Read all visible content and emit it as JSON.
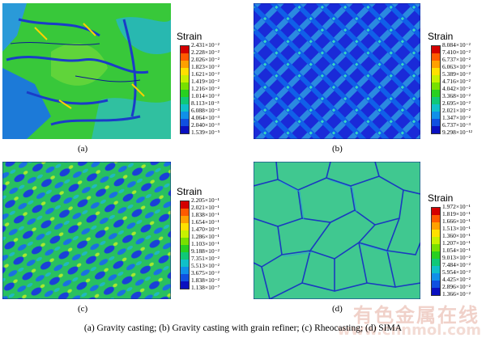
{
  "legend_colors": [
    "#d40000",
    "#ff5a00",
    "#ffa000",
    "#ffe000",
    "#c8f000",
    "#78e000",
    "#28d020",
    "#10c878",
    "#10c0c8",
    "#1090e8",
    "#1050e0",
    "#0a10c0"
  ],
  "panels": [
    {
      "label": "(a)",
      "legend_title": "Strain",
      "ticks": [
        "2.431×10⁻²",
        "2.228×10⁻²",
        "2.026×10⁻²",
        "1.823×10⁻²",
        "1.621×10⁻²",
        "1.419×10⁻²",
        "1.216×10⁻²",
        "1.014×10⁻²",
        "8.113×10⁻³",
        "6.088×10⁻³",
        "4.064×10⁻³",
        "2.040×10⁻³",
        "1.539×10⁻⁵"
      ]
    },
    {
      "label": "(b)",
      "legend_title": "Strain",
      "ticks": [
        "8.084×10⁻²",
        "7.410×10⁻²",
        "6.737×10⁻²",
        "6.063×10⁻²",
        "5.389×10⁻²",
        "4.716×10⁻²",
        "4.042×10⁻²",
        "3.368×10⁻²",
        "2.695×10⁻²",
        "2.021×10⁻²",
        "1.347×10⁻²",
        "6.737×10⁻³",
        "9.298×10⁻¹²"
      ]
    },
    {
      "label": "(c)",
      "legend_title": "Strain",
      "ticks": [
        "2.205×10⁻¹",
        "2.021×10⁻¹",
        "1.838×10⁻¹",
        "1.654×10⁻¹",
        "1.470×10⁻¹",
        "1.286×10⁻¹",
        "1.103×10⁻¹",
        "9.188×10⁻²",
        "7.351×10⁻²",
        "5.513×10⁻²",
        "3.675×10⁻²",
        "1.838×10⁻²",
        "1.138×10⁻⁷"
      ]
    },
    {
      "label": "(d)",
      "legend_title": "Strain",
      "ticks": [
        "1.972×10⁻¹",
        "1.819×10⁻¹",
        "1.666×10⁻¹",
        "1.513×10⁻¹",
        "1.360×10⁻¹",
        "1.207×10⁻¹",
        "1.054×10⁻¹",
        "9.013×10⁻²",
        "7.484×10⁻²",
        "5.954×10⁻²",
        "4.425×10⁻²",
        "2.896×10⁻²",
        "1.366×10⁻²"
      ]
    }
  ],
  "caption": "(a)  Gravity  casting;  (b)  Gravity casting with grain refiner; (c) Rheocasting; (d) SIMA",
  "watermark": "有色金属在线",
  "watermark_url": "www.cnnmol.com"
}
